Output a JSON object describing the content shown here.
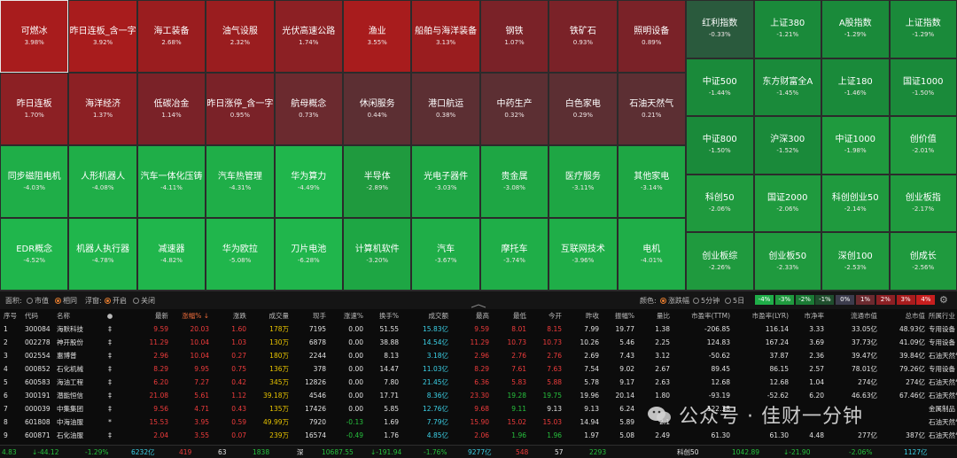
{
  "colors": {
    "r5": "#a81c1d",
    "r4": "#9a1d1f",
    "r3": "#8c2024",
    "r2": "#7a2228",
    "r1": "#6b2a2f",
    "r0": "#5c2f33",
    "g1": "#1f9a3e",
    "g2": "#1ea644",
    "g3": "#1fae48",
    "g4": "#20b64c",
    "gi": "#1a8a3a",
    "gs": "#2a5a3d"
  },
  "sectors": [
    {
      "name": "可燃冰",
      "pct": "3.98%",
      "c": "r5",
      "sel": true
    },
    {
      "name": "昨日连板_含一字",
      "pct": "3.92%",
      "c": "r5"
    },
    {
      "name": "海工装备",
      "pct": "2.68%",
      "c": "r4"
    },
    {
      "name": "油气设服",
      "pct": "2.32%",
      "c": "r4"
    },
    {
      "name": "光伏高速公路",
      "pct": "1.74%",
      "c": "r3"
    },
    {
      "name": "渔业",
      "pct": "3.55%",
      "c": "r5"
    },
    {
      "name": "船舶与海洋装备",
      "pct": "3.13%",
      "c": "r4"
    },
    {
      "name": "钢铁",
      "pct": "1.07%",
      "c": "r2"
    },
    {
      "name": "铁矿石",
      "pct": "0.93%",
      "c": "r2"
    },
    {
      "name": "照明设备",
      "pct": "0.89%",
      "c": "r2"
    },
    {
      "name": "昨日连板",
      "pct": "1.70%",
      "c": "r3"
    },
    {
      "name": "海洋经济",
      "pct": "1.37%",
      "c": "r3"
    },
    {
      "name": "低碳冶金",
      "pct": "1.14%",
      "c": "r2"
    },
    {
      "name": "昨日涨停_含一字",
      "pct": "0.95%",
      "c": "r2"
    },
    {
      "name": "航母概念",
      "pct": "0.73%",
      "c": "r1"
    },
    {
      "name": "休闲服务",
      "pct": "0.44%",
      "c": "r0"
    },
    {
      "name": "港口航运",
      "pct": "0.38%",
      "c": "r0"
    },
    {
      "name": "中药生产",
      "pct": "0.32%",
      "c": "r0"
    },
    {
      "name": "白色家电",
      "pct": "0.29%",
      "c": "r0"
    },
    {
      "name": "石油天然气",
      "pct": "0.21%",
      "c": "r0"
    },
    {
      "name": "同步磁阻电机",
      "pct": "-4.03%",
      "c": "g3"
    },
    {
      "name": "人形机器人",
      "pct": "-4.08%",
      "c": "g3"
    },
    {
      "name": "汽车一体化压铸",
      "pct": "-4.11%",
      "c": "g3"
    },
    {
      "name": "汽车热管理",
      "pct": "-4.31%",
      "c": "g3"
    },
    {
      "name": "华为算力",
      "pct": "-4.49%",
      "c": "g4"
    },
    {
      "name": "半导体",
      "pct": "-2.89%",
      "c": "g1"
    },
    {
      "name": "光电子器件",
      "pct": "-3.03%",
      "c": "g2"
    },
    {
      "name": "贵金属",
      "pct": "-3.08%",
      "c": "g2"
    },
    {
      "name": "医疗服务",
      "pct": "-3.11%",
      "c": "g2"
    },
    {
      "name": "其他家电",
      "pct": "-3.14%",
      "c": "g2"
    },
    {
      "name": "EDR概念",
      "pct": "-4.52%",
      "c": "g4"
    },
    {
      "name": "机器人执行器",
      "pct": "-4.78%",
      "c": "g4"
    },
    {
      "name": "减速器",
      "pct": "-4.82%",
      "c": "g4"
    },
    {
      "name": "华为欧拉",
      "pct": "-5.08%",
      "c": "g4"
    },
    {
      "name": "刀片电池",
      "pct": "-6.28%",
      "c": "g4"
    },
    {
      "name": "计算机软件",
      "pct": "-3.20%",
      "c": "g2"
    },
    {
      "name": "汽车",
      "pct": "-3.67%",
      "c": "g3"
    },
    {
      "name": "摩托车",
      "pct": "-3.74%",
      "c": "g3"
    },
    {
      "name": "互联网技术",
      "pct": "-3.96%",
      "c": "g3"
    },
    {
      "name": "电机",
      "pct": "-4.01%",
      "c": "g3"
    }
  ],
  "indices": [
    {
      "name": "红利指数",
      "pct": "-0.33%",
      "c": "gs"
    },
    {
      "name": "上证380",
      "pct": "-1.21%",
      "c": "gi"
    },
    {
      "name": "A股指数",
      "pct": "-1.29%",
      "c": "gi"
    },
    {
      "name": "上证指数",
      "pct": "-1.29%",
      "c": "gi"
    },
    {
      "name": "中证500",
      "pct": "-1.44%",
      "c": "gi"
    },
    {
      "name": "东方财富全A",
      "pct": "-1.45%",
      "c": "gi"
    },
    {
      "name": "上证180",
      "pct": "-1.46%",
      "c": "gi"
    },
    {
      "name": "国证1000",
      "pct": "-1.50%",
      "c": "gi"
    },
    {
      "name": "中证800",
      "pct": "-1.50%",
      "c": "gi"
    },
    {
      "name": "沪深300",
      "pct": "-1.52%",
      "c": "gi"
    },
    {
      "name": "中证1000",
      "pct": "-1.98%",
      "c": "g1"
    },
    {
      "name": "创价值",
      "pct": "-2.01%",
      "c": "g1"
    },
    {
      "name": "科创50",
      "pct": "-2.06%",
      "c": "g1"
    },
    {
      "name": "国证2000",
      "pct": "-2.06%",
      "c": "g1"
    },
    {
      "name": "科创创业50",
      "pct": "-2.14%",
      "c": "g1"
    },
    {
      "name": "创业板指",
      "pct": "-2.17%",
      "c": "g1"
    },
    {
      "name": "创业板综",
      "pct": "-2.26%",
      "c": "g1"
    },
    {
      "name": "创业板50",
      "pct": "-2.33%",
      "c": "g1"
    },
    {
      "name": "深创100",
      "pct": "-2.53%",
      "c": "g1"
    },
    {
      "name": "创成长",
      "pct": "-2.56%",
      "c": "g1"
    }
  ],
  "controls": {
    "area_label": "面积:",
    "opt_mktcap": "市值",
    "opt_equal": "相同",
    "float_label": "浮窗:",
    "opt_on": "开启",
    "opt_off": "关闭",
    "color_label": "颜色:",
    "opt_change": "涨跌幅",
    "opt_5min": "5分钟",
    "opt_5day": "5日",
    "legend": [
      {
        "t": "-4%",
        "bg": "#1fae48"
      },
      {
        "t": "-3%",
        "bg": "#1f9a3e"
      },
      {
        "t": "-2%",
        "bg": "#1a7a34"
      },
      {
        "t": "-1%",
        "bg": "#1f4e2d"
      },
      {
        "t": "0%",
        "bg": "#3c3c4c"
      },
      {
        "t": "1%",
        "bg": "#6b2a2f"
      },
      {
        "t": "2%",
        "bg": "#8c2024"
      },
      {
        "t": "3%",
        "bg": "#a81c1d"
      },
      {
        "t": "4%",
        "bg": "#c81e1e"
      }
    ]
  },
  "table": {
    "headers": [
      "序号",
      "代码",
      "名称",
      "●",
      "最新",
      "涨幅% ↓",
      "涨跌",
      "成交量",
      "现手",
      "涨速%",
      "换手%",
      "成交额",
      "最高",
      "最低",
      "今开",
      "昨收",
      "振幅%",
      "量比",
      "市盈率(TTM)",
      "市盈率(LYR)",
      "市净率",
      "流通市值",
      "总市值",
      "所属行业"
    ],
    "rows": [
      [
        "1",
        "300084",
        "海默科技",
        "‡",
        "9.59",
        "20.03",
        "1.60",
        "178万",
        "7195",
        "0.00",
        "51.55",
        "15.83亿",
        "9.59",
        "8.01",
        "8.15",
        "7.99",
        "19.77",
        "1.38",
        "-206.85",
        "116.14",
        "3.33",
        "33.05亿",
        "48.93亿",
        "专用设备"
      ],
      [
        "2",
        "002278",
        "神开股份",
        "‡",
        "11.29",
        "10.04",
        "1.03",
        "130万",
        "6878",
        "0.00",
        "38.88",
        "14.54亿",
        "11.29",
        "10.73",
        "10.73",
        "10.26",
        "5.46",
        "2.25",
        "124.83",
        "167.24",
        "3.69",
        "37.73亿",
        "41.09亿",
        "专用设备"
      ],
      [
        "3",
        "002554",
        "惠博普",
        "‡",
        "2.96",
        "10.04",
        "0.27",
        "180万",
        "2244",
        "0.00",
        "8.13",
        "3.18亿",
        "2.96",
        "2.76",
        "2.76",
        "2.69",
        "7.43",
        "3.12",
        "-50.62",
        "37.87",
        "2.36",
        "39.47亿",
        "39.84亿",
        "石油天然气"
      ],
      [
        "4",
        "000852",
        "石化机械",
        "‡",
        "8.29",
        "9.95",
        "0.75",
        "136万",
        "378",
        "0.00",
        "14.47",
        "11.03亿",
        "8.29",
        "7.61",
        "7.63",
        "7.54",
        "9.02",
        "2.67",
        "89.45",
        "86.15",
        "2.57",
        "78.01亿",
        "79.26亿",
        "专用设备"
      ],
      [
        "5",
        "600583",
        "海油工程",
        "‡",
        "6.20",
        "7.27",
        "0.42",
        "345万",
        "12826",
        "0.00",
        "7.80",
        "21.45亿",
        "6.36",
        "5.83",
        "5.88",
        "5.78",
        "9.17",
        "2.63",
        "12.68",
        "12.68",
        "1.04",
        "274亿",
        "274亿",
        "石油天然气"
      ],
      [
        "6",
        "300191",
        "潜能恒信",
        "‡",
        "21.08",
        "5.61",
        "1.12",
        "39.18万",
        "4546",
        "0.00",
        "17.71",
        "8.36亿",
        "23.30",
        "19.28",
        "19.75",
        "19.96",
        "20.14",
        "1.80",
        "-93.19",
        "-52.62",
        "6.20",
        "46.63亿",
        "67.46亿",
        "石油天然气"
      ],
      [
        "7",
        "000039",
        "中集集团",
        "‡",
        "9.56",
        "4.71",
        "0.43",
        "135万",
        "17426",
        "0.00",
        "5.85",
        "12.76亿",
        "9.68",
        "9.11",
        "9.13",
        "9.13",
        "6.24",
        "",
        "122.38",
        "",
        "",
        "",
        "",
        "金属制品"
      ],
      [
        "8",
        "601808",
        "中海油服",
        "*",
        "15.53",
        "3.95",
        "0.59",
        "49.99万",
        "7920",
        "-0.13",
        "1.69",
        "7.79亿",
        "15.90",
        "15.02",
        "15.03",
        "14.94",
        "5.89",
        "2.1",
        "",
        "",
        "",
        "",
        "",
        "石油天然气"
      ],
      [
        "9",
        "600871",
        "石化油服",
        "‡",
        "2.04",
        "3.55",
        "0.07",
        "239万",
        "16574",
        "-0.49",
        "1.76",
        "4.85亿",
        "2.06",
        "1.96",
        "1.96",
        "1.97",
        "5.08",
        "2.49",
        "61.30",
        "61.30",
        "4.48",
        "277亿",
        "387亿",
        "石油天然气"
      ]
    ]
  },
  "status": {
    "a1": "4.83",
    "a2": "↓-44.12",
    "a3": "-1.29%",
    "a4": "6232亿",
    "a5": "419",
    "a6": "63",
    "a7": "1838",
    "b0": "深",
    "b1": "10687.55",
    "b2": "↓-191.94",
    "b3": "-1.76%",
    "b4": "9277亿",
    "b5": "548",
    "b6": "57",
    "b7": "2293",
    "c0": "科创50",
    "c1": "1042.89",
    "c2": "↓-21.90",
    "c3": "-2.06%",
    "c4": "1127亿"
  },
  "watermark": "公众号 · 佳财一分钟"
}
